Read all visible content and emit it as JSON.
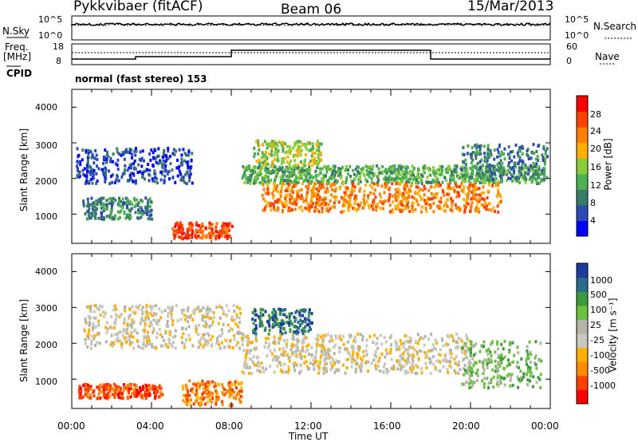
{
  "header": {
    "station": "Pykkvibaer (fitACF)",
    "beam": "Beam 06",
    "date": "15/Mar/2013"
  },
  "top_panel": {
    "left_label": "N.Sky",
    "right_label": "N.Search",
    "yticks": [
      "10^5",
      "10^0"
    ],
    "right_yticks": [
      "10^5",
      "10^0"
    ]
  },
  "freq_panel": {
    "left_label_line1": "Freq.",
    "left_label_line2": "[MHz]",
    "right_label": "Nave",
    "yticks": [
      "18",
      "8"
    ],
    "right_yticks": [
      "60",
      "0"
    ]
  },
  "cpid": {
    "label": "CPID",
    "value": "normal (fast stereo) 153"
  },
  "axes": {
    "xlabel": "Time UT",
    "xticks": [
      "00:00",
      "04:00",
      "08:00",
      "12:00",
      "16:00",
      "20:00",
      "00:00"
    ],
    "ylabel": "Slant Range [km]",
    "yticks": [
      "4000",
      "3000",
      "2000",
      "1000"
    ]
  },
  "chart_data": [
    {
      "type": "heatmap",
      "name": "power",
      "colorbar_label": "Power [dB]",
      "colorbar_ticks": [
        "28",
        "24",
        "20",
        "16",
        "12",
        "8",
        "4"
      ],
      "colors": [
        "#0000ff",
        "#2a4bb4",
        "#3a7a6a",
        "#4caf50",
        "#8ccc3c",
        "#ffb000",
        "#ff8000",
        "#ff4000",
        "#ff0000"
      ],
      "x_range_hours": [
        0,
        24
      ],
      "y_range_km": [
        180,
        4500
      ],
      "bands": [
        {
          "t": [
            0.2,
            6.0
          ],
          "r": [
            1900,
            2900
          ],
          "level": 1
        },
        {
          "t": [
            8.5,
            23.5
          ],
          "r": [
            1900,
            2400
          ],
          "level": 3
        },
        {
          "t": [
            9.5,
            21.5
          ],
          "r": [
            1100,
            1900
          ],
          "level": 6
        },
        {
          "t": [
            5.0,
            8.0
          ],
          "r": [
            350,
            800
          ],
          "level": 7
        },
        {
          "t": [
            0.5,
            4.0
          ],
          "r": [
            900,
            1500
          ],
          "level": 2
        },
        {
          "t": [
            9.0,
            12.5
          ],
          "r": [
            2400,
            3100
          ],
          "level": 4
        },
        {
          "t": [
            19.5,
            23.8
          ],
          "r": [
            2000,
            3000
          ],
          "level": 2
        }
      ]
    },
    {
      "type": "heatmap",
      "name": "velocity",
      "colorbar_label": "Velocity [m s⁻¹]",
      "colorbar_ticks": [
        "1000",
        "500",
        "100",
        "25",
        "-25",
        "-100",
        "-500",
        "-1000"
      ],
      "colors": [
        "#ff0000",
        "#ff4000",
        "#ff8c00",
        "#ffb000",
        "#c8c8c0",
        "#b4b4a8",
        "#6cc040",
        "#3c9a3c",
        "#2a6a8a",
        "#1c3c9c"
      ],
      "x_range_hours": [
        0,
        24
      ],
      "y_range_km": [
        180,
        4500
      ],
      "bands": [
        {
          "t": [
            8.5,
            20.0
          ],
          "r": [
            1200,
            2300
          ],
          "level": 4
        },
        {
          "t": [
            0.5,
            8.5
          ],
          "r": [
            1900,
            3100
          ],
          "level": 4
        },
        {
          "t": [
            5.5,
            8.5
          ],
          "r": [
            300,
            1000
          ],
          "level": 2
        },
        {
          "t": [
            0.3,
            4.5
          ],
          "r": [
            500,
            900
          ],
          "level": 1
        },
        {
          "t": [
            19.5,
            23.5
          ],
          "r": [
            800,
            2100
          ],
          "level": 6
        },
        {
          "t": [
            9.0,
            12.0
          ],
          "r": [
            2300,
            3000
          ],
          "level": 8
        }
      ]
    }
  ]
}
